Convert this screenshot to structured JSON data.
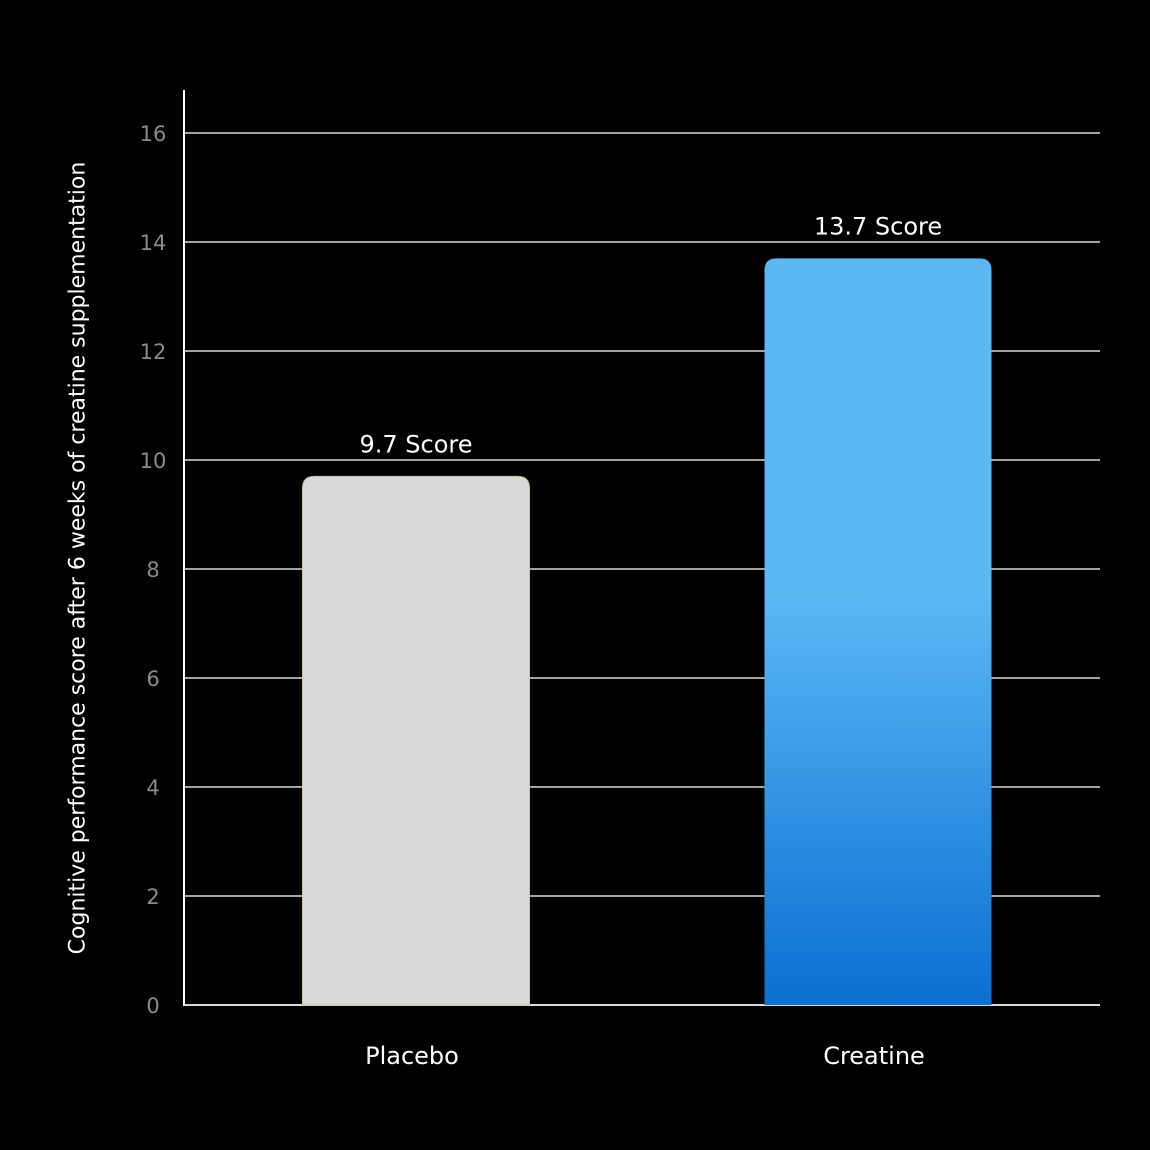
{
  "chart_data": {
    "type": "bar",
    "categories": [
      "Placebo",
      "Creatine"
    ],
    "values": [
      9.7,
      13.7
    ],
    "data_labels": [
      "9.7 Score",
      "13.7 Score"
    ],
    "title": "",
    "xlabel": "",
    "ylabel": "Cognitive performance score after 6 weeks of creatine supplementation",
    "ylim": [
      0,
      16
    ],
    "yticks": [
      0,
      2,
      4,
      6,
      8,
      10,
      12,
      14,
      16
    ],
    "grid": true,
    "colors": {
      "background": "#000000",
      "placebo": "#d9d9d9",
      "creatine_top": "#5cb8f5",
      "creatine_bottom": "#0a6fd2",
      "grid": "#d9d9d9",
      "tick_label": "#8a8a8a",
      "text": "#ffffff"
    }
  }
}
